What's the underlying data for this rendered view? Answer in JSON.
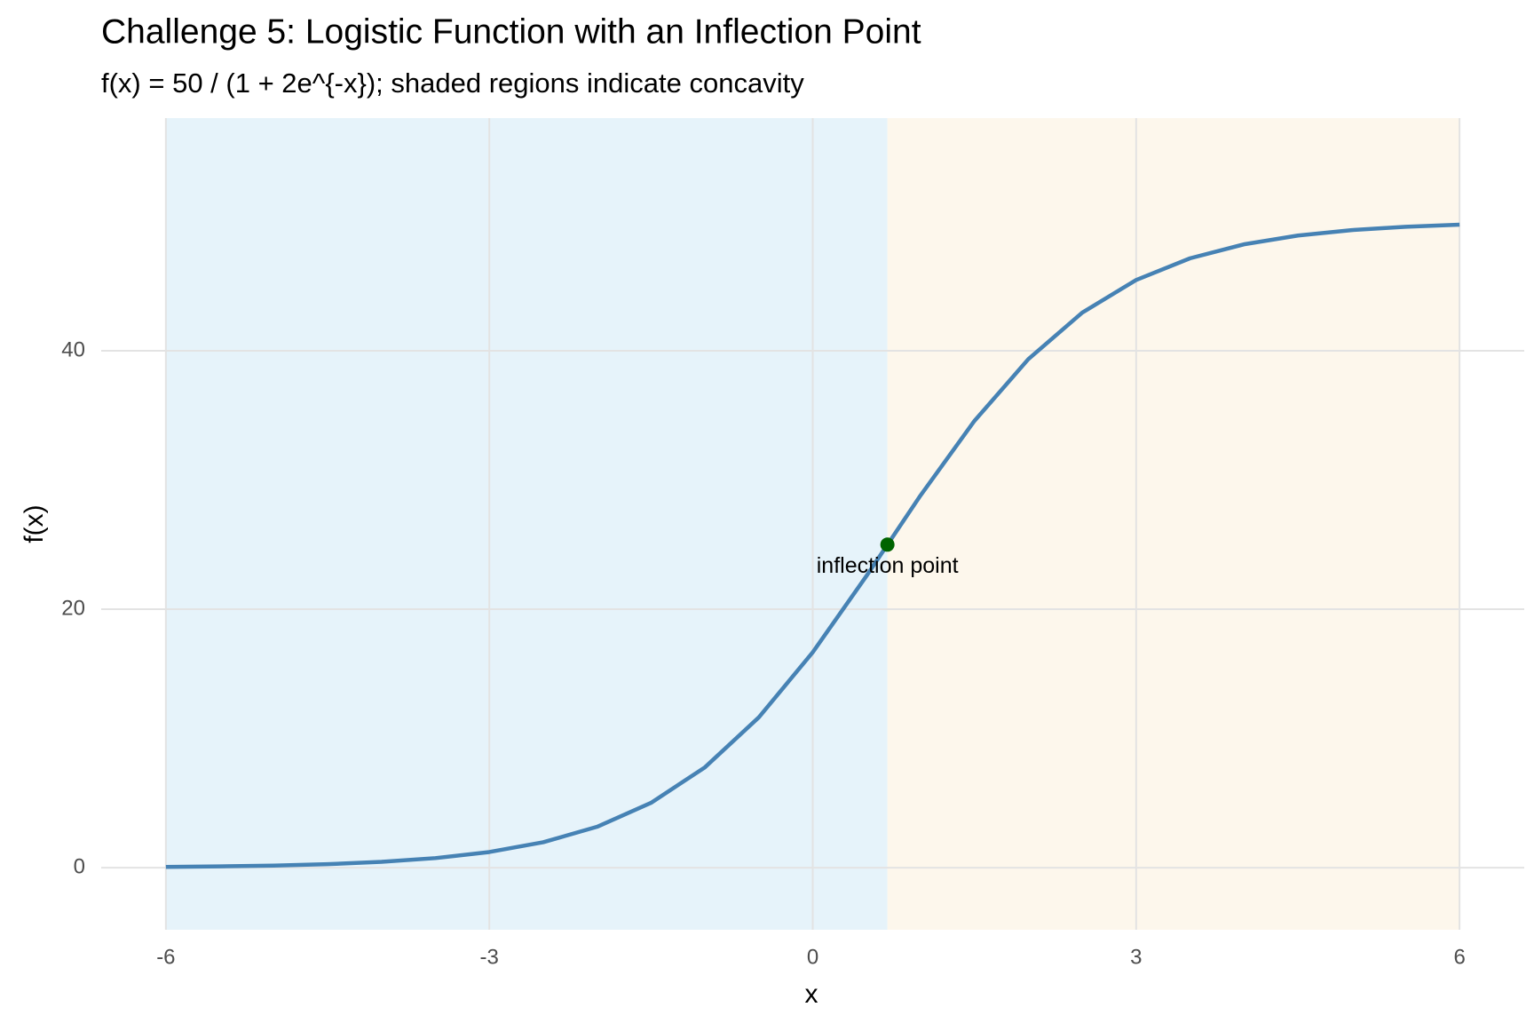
{
  "chart_data": {
    "type": "line",
    "title": "Challenge 5: Logistic Function with an Inflection Point",
    "subtitle": "f(x) = 50 / (1 + 2e^{-x}); shaded regions indicate concavity",
    "x_label": "x",
    "y_label": "f(x)",
    "x": [
      -6,
      -5.5,
      -5,
      -4.5,
      -4,
      -3.5,
      -3,
      -2.5,
      -2,
      -1.5,
      -1,
      -0.5,
      0,
      0.5,
      1,
      1.5,
      2,
      2.5,
      3,
      3.5,
      4,
      4.5,
      5,
      5.5,
      6
    ],
    "values": [
      0.062,
      0.102,
      0.168,
      0.276,
      0.454,
      0.744,
      1.214,
      1.971,
      3.169,
      5.018,
      7.768,
      11.635,
      16.667,
      22.593,
      28.806,
      34.572,
      39.349,
      42.949,
      45.472,
      47.152,
      48.233,
      48.913,
      49.335,
      49.595,
      49.753
    ],
    "color": "#4682b4",
    "shaded_regions": [
      {
        "from": -6,
        "to": 0.693,
        "color": "#e6f3fa"
      },
      {
        "from": 0.693,
        "to": 6,
        "color": "#fdf7ec"
      }
    ],
    "annotation": {
      "x": 0.693,
      "y": 25,
      "label": "inflection point",
      "color": "#006400"
    },
    "xlim": [
      -6.6,
      6.6
    ],
    "ylim": [
      -4.8,
      58
    ],
    "xticks": [
      -6,
      -3,
      0,
      3,
      6
    ],
    "yticks": [
      0,
      20,
      40
    ],
    "grid": true
  }
}
